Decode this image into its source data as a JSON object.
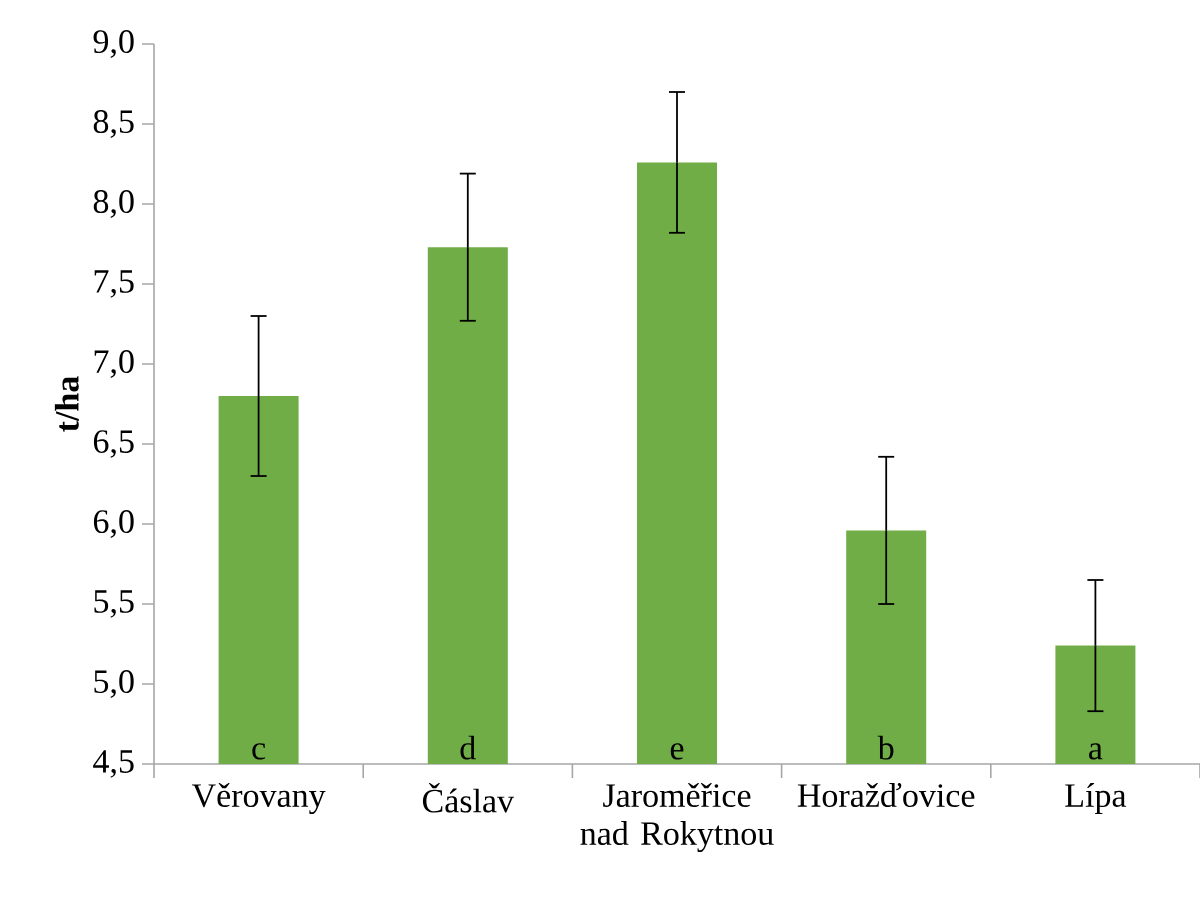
{
  "chart_data": {
    "type": "bar",
    "ylabel": "t/ha",
    "categories": [
      "Věrovany",
      "Čáslav",
      "Jaroměřice nad Rokytnou",
      "Horažďovice",
      "Lípa"
    ],
    "values": [
      6.8,
      7.73,
      8.26,
      5.96,
      5.24
    ],
    "errors": [
      0.5,
      0.46,
      0.44,
      0.46,
      0.41
    ],
    "color": "#70ad47",
    "ylim": [
      4.5,
      9.0
    ],
    "yticks": [
      {
        "value": 4.5,
        "label": "4,5"
      },
      {
        "value": 5.0,
        "label": "5,0"
      },
      {
        "value": 5.5,
        "label": "5,5"
      },
      {
        "value": 6.0,
        "label": "6,0"
      },
      {
        "value": 6.5,
        "label": "6,5"
      },
      {
        "value": 7.0,
        "label": "7,0"
      },
      {
        "value": 7.5,
        "label": "7,5"
      },
      {
        "value": 8.0,
        "label": "8,0"
      },
      {
        "value": 8.5,
        "label": "8,5"
      },
      {
        "value": 9.0,
        "label": "9,0"
      }
    ],
    "annotations": [
      "c",
      "d",
      "e",
      "b",
      "a"
    ]
  }
}
